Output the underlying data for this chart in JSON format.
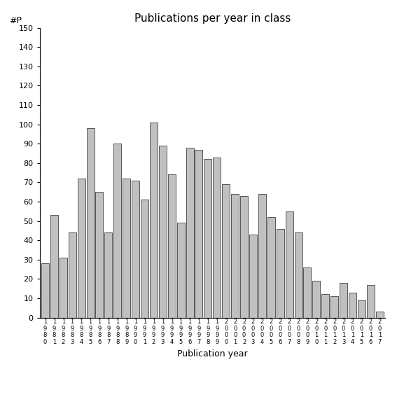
{
  "title": "Publications per year in class",
  "xlabel": "Publication year",
  "ylabel": "#P",
  "years": [
    "1980",
    "1981",
    "1982",
    "1983",
    "1984",
    "1985",
    "1986",
    "1987",
    "1988",
    "1989",
    "1990",
    "1991",
    "1992",
    "1993",
    "1994",
    "1995",
    "1996",
    "1997",
    "1998",
    "1999",
    "2000",
    "2001",
    "2002",
    "2003",
    "2004",
    "2005",
    "2006",
    "2007",
    "2008",
    "2009",
    "2010",
    "2011",
    "2012",
    "2013",
    "2014",
    "2015",
    "2016",
    "2017"
  ],
  "values": [
    28,
    53,
    31,
    44,
    72,
    98,
    65,
    44,
    90,
    72,
    71,
    61,
    101,
    89,
    74,
    49,
    88,
    87,
    82,
    83,
    69,
    64,
    63,
    43,
    64,
    52,
    46,
    55,
    44,
    26,
    19,
    12,
    11,
    18,
    13,
    9,
    17,
    3
  ],
  "bar_color": "#c0c0c0",
  "bar_edgecolor": "#404040",
  "ylim": [
    0,
    150
  ],
  "yticks": [
    0,
    10,
    20,
    30,
    40,
    50,
    60,
    70,
    80,
    90,
    100,
    110,
    120,
    130,
    140,
    150
  ],
  "background_color": "#ffffff",
  "figsize": [
    5.67,
    5.67
  ],
  "dpi": 100,
  "title_fontsize": 11,
  "axis_label_fontsize": 9,
  "tick_fontsize": 8,
  "xtick_fontsize": 6
}
